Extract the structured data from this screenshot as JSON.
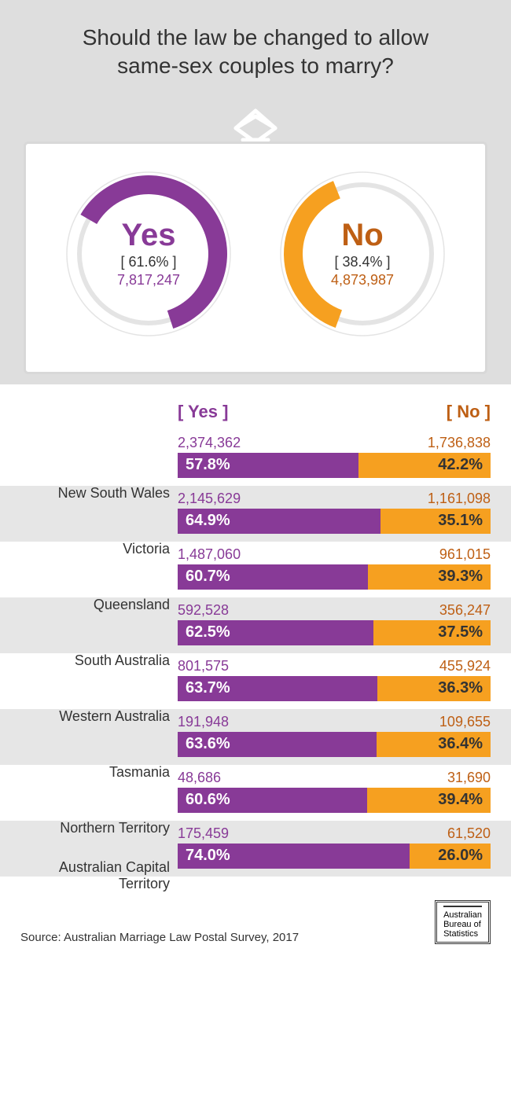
{
  "title_line1": "Should the law be changed to allow",
  "title_line2": "same-sex couples to marry?",
  "colors": {
    "yes": "#883a97",
    "no_arc": "#f6a020",
    "no_text": "#be5f14",
    "bg_grey": "#dedede",
    "ring_grey": "#e4e4e4",
    "bar_no": "#f6a020",
    "row_alt": "#e6e6e6"
  },
  "donuts": {
    "yes": {
      "label": "Yes",
      "percent_display": "[ 61.6% ]",
      "percent": 61.6,
      "count": "7,817,247"
    },
    "no": {
      "label": "No",
      "percent_display": "[ 38.4% ]",
      "percent": 38.4,
      "count": "4,873,987"
    }
  },
  "headers": {
    "yes": "[ Yes ]",
    "no": "[ No ]"
  },
  "states": [
    {
      "name": "New South Wales",
      "yes_count": "2,374,362",
      "no_count": "1,736,838",
      "yes_pct": 57.8,
      "no_pct": 42.2,
      "yes_pct_s": "57.8%",
      "no_pct_s": "42.2%"
    },
    {
      "name": "Victoria",
      "yes_count": "2,145,629",
      "no_count": "1,161,098",
      "yes_pct": 64.9,
      "no_pct": 35.1,
      "yes_pct_s": "64.9%",
      "no_pct_s": "35.1%"
    },
    {
      "name": "Queensland",
      "yes_count": "1,487,060",
      "no_count": "961,015",
      "yes_pct": 60.7,
      "no_pct": 39.3,
      "yes_pct_s": "60.7%",
      "no_pct_s": "39.3%"
    },
    {
      "name": "South Australia",
      "yes_count": "592,528",
      "no_count": "356,247",
      "yes_pct": 62.5,
      "no_pct": 37.5,
      "yes_pct_s": "62.5%",
      "no_pct_s": "37.5%"
    },
    {
      "name": "Western Australia",
      "yes_count": "801,575",
      "no_count": "455,924",
      "yes_pct": 63.7,
      "no_pct": 36.3,
      "yes_pct_s": "63.7%",
      "no_pct_s": "36.3%"
    },
    {
      "name": "Tasmania",
      "yes_count": "191,948",
      "no_count": "109,655",
      "yes_pct": 63.6,
      "no_pct": 36.4,
      "yes_pct_s": "63.6%",
      "no_pct_s": "36.4%"
    },
    {
      "name": "Northern Territory",
      "yes_count": "48,686",
      "no_count": "31,690",
      "yes_pct": 60.6,
      "no_pct": 39.4,
      "yes_pct_s": "60.6%",
      "no_pct_s": "39.4%"
    },
    {
      "name": "Australian Capital Territory",
      "yes_count": "175,459",
      "no_count": "61,520",
      "yes_pct": 74.0,
      "no_pct": 26.0,
      "yes_pct_s": "74.0%",
      "no_pct_s": "26.0%"
    }
  ],
  "source": "Source: Australian Marriage Law Postal Survey, 2017",
  "logo": {
    "line1": "Australian",
    "line2": "Bureau of",
    "line3": "Statistics"
  },
  "donut_style": {
    "outer_radius": 100,
    "arc_width": 24,
    "ring_width": 1.5
  }
}
